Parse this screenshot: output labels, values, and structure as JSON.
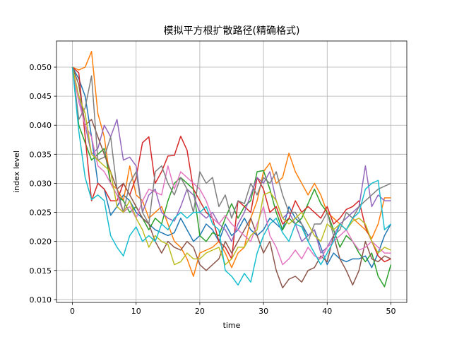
{
  "chart_data": {
    "type": "line",
    "title": "模拟平方根扩散路径(精确格式)",
    "xlabel": "time",
    "ylabel": "index level",
    "xlim": [
      -2.5,
      52.5
    ],
    "ylim": [
      0.0095,
      0.0545
    ],
    "xticks": [
      0,
      10,
      20,
      30,
      40,
      50
    ],
    "yticks": [
      0.01,
      0.015,
      0.02,
      0.025,
      0.03,
      0.035,
      0.04,
      0.045,
      0.05
    ],
    "xtick_labels": [
      "0",
      "10",
      "20",
      "30",
      "40",
      "50"
    ],
    "ytick_labels": [
      "0.010",
      "0.015",
      "0.020",
      "0.025",
      "0.030",
      "0.035",
      "0.040",
      "0.045",
      "0.050"
    ],
    "grid": true,
    "x": [
      0,
      1,
      2,
      3,
      4,
      5,
      6,
      7,
      8,
      9,
      10,
      11,
      12,
      13,
      14,
      15,
      16,
      17,
      18,
      19,
      20,
      21,
      22,
      23,
      24,
      25,
      26,
      27,
      28,
      29,
      30,
      31,
      32,
      33,
      34,
      35,
      36,
      37,
      38,
      39,
      40,
      41,
      42,
      43,
      44,
      45,
      46,
      47,
      48,
      49,
      50
    ],
    "series": [
      {
        "color": "#1f77b4",
        "values": [
          0.05,
          0.048,
          0.045,
          0.038,
          0.03,
          0.029,
          0.0245,
          0.026,
          0.028,
          0.027,
          0.025,
          0.024,
          0.023,
          0.022,
          0.0215,
          0.021,
          0.0215,
          0.024,
          0.022,
          0.02,
          0.021,
          0.023,
          0.022,
          0.02,
          0.023,
          0.021,
          0.022,
          0.024,
          0.022,
          0.021,
          0.022,
          0.024,
          0.023,
          0.022,
          0.026,
          0.024,
          0.023,
          0.021,
          0.022,
          0.019,
          0.016,
          0.018,
          0.017,
          0.0165,
          0.017,
          0.017,
          0.0175,
          0.0155,
          0.018,
          0.021,
          0.023
        ]
      },
      {
        "color": "#ff7f0e",
        "values": [
          0.05,
          0.0495,
          0.05,
          0.0527,
          0.042,
          0.038,
          0.03,
          0.029,
          0.027,
          0.033,
          0.028,
          0.027,
          0.024,
          0.025,
          0.026,
          0.023,
          0.02,
          0.019,
          0.017,
          0.014,
          0.018,
          0.0185,
          0.019,
          0.02,
          0.018,
          0.0155,
          0.018,
          0.019,
          0.024,
          0.027,
          0.032,
          0.0335,
          0.03,
          0.031,
          0.0352,
          0.032,
          0.03,
          0.028,
          0.03,
          0.028,
          0.025,
          0.024,
          0.023,
          0.022,
          0.024,
          0.023,
          0.022,
          0.0205,
          0.023,
          0.0275,
          0.0275
        ]
      },
      {
        "color": "#2ca02c",
        "values": [
          0.05,
          0.04,
          0.037,
          0.034,
          0.035,
          0.036,
          0.03,
          0.028,
          0.027,
          0.025,
          0.026,
          0.024,
          0.022,
          0.024,
          0.023,
          0.027,
          0.03,
          0.031,
          0.03,
          0.029,
          0.021,
          0.02,
          0.0215,
          0.021,
          0.024,
          0.0265,
          0.024,
          0.026,
          0.027,
          0.032,
          0.0322,
          0.029,
          0.025,
          0.022,
          0.024,
          0.023,
          0.024,
          0.0265,
          0.029,
          0.0265,
          0.025,
          0.022,
          0.019,
          0.021,
          0.02,
          0.018,
          0.0165,
          0.018,
          0.014,
          0.0122,
          0.016
        ]
      },
      {
        "color": "#d62728",
        "values": [
          0.05,
          0.049,
          0.038,
          0.027,
          0.03,
          0.029,
          0.027,
          0.027,
          0.03,
          0.028,
          0.031,
          0.037,
          0.038,
          0.03,
          0.032,
          0.0347,
          0.0348,
          0.0381,
          0.0357,
          0.029,
          0.027,
          0.025,
          0.024,
          0.02,
          0.019,
          0.017,
          0.027,
          0.026,
          0.025,
          0.031,
          0.029,
          0.025,
          0.026,
          0.023,
          0.024,
          0.027,
          0.025,
          0.026,
          0.025,
          0.024,
          0.026,
          0.023,
          0.024,
          0.0255,
          0.026,
          0.027,
          0.0225,
          0.02,
          0.0175,
          0.0165,
          0.017
        ]
      },
      {
        "color": "#9467bd",
        "values": [
          0.05,
          0.045,
          0.04,
          0.035,
          0.036,
          0.04,
          0.038,
          0.041,
          0.034,
          0.0345,
          0.033,
          0.025,
          0.028,
          0.029,
          0.025,
          0.024,
          0.0235,
          0.026,
          0.029,
          0.028,
          0.025,
          0.024,
          0.025,
          0.023,
          0.022,
          0.02,
          0.023,
          0.025,
          0.028,
          0.031,
          0.03,
          0.032,
          0.027,
          0.024,
          0.025,
          0.023,
          0.02,
          0.021,
          0.022,
          0.018,
          0.019,
          0.021,
          0.023,
          0.024,
          0.025,
          0.026,
          0.033,
          0.026,
          0.028,
          0.027,
          0.027
        ]
      },
      {
        "color": "#8c564b",
        "values": [
          0.05,
          0.047,
          0.04,
          0.041,
          0.038,
          0.035,
          0.032,
          0.029,
          0.03,
          0.028,
          0.026,
          0.024,
          0.023,
          0.02,
          0.018,
          0.02,
          0.019,
          0.0185,
          0.02,
          0.019,
          0.016,
          0.015,
          0.016,
          0.017,
          0.02,
          0.018,
          0.02,
          0.022,
          0.024,
          0.021,
          0.018,
          0.02,
          0.015,
          0.012,
          0.0135,
          0.014,
          0.013,
          0.015,
          0.0155,
          0.0175,
          0.0165,
          0.021,
          0.017,
          0.015,
          0.0125,
          0.015,
          0.02,
          0.017,
          0.0165,
          0.0175,
          0.017
        ]
      },
      {
        "color": "#e377c2",
        "values": [
          0.05,
          0.044,
          0.04,
          0.038,
          0.033,
          0.032,
          0.03,
          0.028,
          0.025,
          0.026,
          0.024,
          0.027,
          0.029,
          0.0285,
          0.028,
          0.033,
          0.029,
          0.032,
          0.031,
          0.03,
          0.029,
          0.027,
          0.024,
          0.023,
          0.0245,
          0.023,
          0.022,
          0.021,
          0.02,
          0.023,
          0.026,
          0.021,
          0.019,
          0.016,
          0.017,
          0.0185,
          0.017,
          0.019,
          0.0175,
          0.017,
          0.019,
          0.02,
          0.021,
          0.022,
          0.02,
          0.0185,
          0.019,
          0.02,
          0.019,
          0.018,
          0.018
        ]
      },
      {
        "color": "#7f7f7f",
        "values": [
          0.05,
          0.041,
          0.043,
          0.0485,
          0.034,
          0.0345,
          0.038,
          0.029,
          0.025,
          0.03,
          0.032,
          0.025,
          0.023,
          0.032,
          0.033,
          0.03,
          0.028,
          0.031,
          0.029,
          0.025,
          0.032,
          0.03,
          0.031,
          0.026,
          0.028,
          0.024,
          0.027,
          0.0265,
          0.03,
          0.028,
          0.031,
          0.03,
          0.032,
          0.028,
          0.025,
          0.025,
          0.023,
          0.02,
          0.023,
          0.023,
          0.025,
          0.021,
          0.022,
          0.025,
          0.024,
          0.026,
          0.027,
          0.028,
          0.029,
          0.0295,
          0.03
        ]
      },
      {
        "color": "#bcbd22",
        "values": [
          0.05,
          0.045,
          0.042,
          0.035,
          0.034,
          0.033,
          0.032,
          0.026,
          0.025,
          0.027,
          0.024,
          0.022,
          0.019,
          0.021,
          0.02,
          0.0195,
          0.016,
          0.0165,
          0.018,
          0.017,
          0.017,
          0.018,
          0.0185,
          0.019,
          0.016,
          0.017,
          0.019,
          0.019,
          0.021,
          0.022,
          0.028,
          0.0285,
          0.027,
          0.024,
          0.023,
          0.024,
          0.025,
          0.023,
          0.021,
          0.02,
          0.023,
          0.022,
          0.023,
          0.022,
          0.0235,
          0.024,
          0.023,
          0.02,
          0.018,
          0.019,
          0.0185
        ]
      },
      {
        "color": "#17becf",
        "values": [
          0.05,
          0.039,
          0.031,
          0.0272,
          0.028,
          0.027,
          0.021,
          0.019,
          0.0175,
          0.021,
          0.0225,
          0.02,
          0.021,
          0.02,
          0.023,
          0.022,
          0.024,
          0.025,
          0.024,
          0.025,
          0.025,
          0.026,
          0.023,
          0.022,
          0.015,
          0.014,
          0.0125,
          0.0145,
          0.013,
          0.018,
          0.021,
          0.023,
          0.024,
          0.0215,
          0.02,
          0.023,
          0.0225,
          0.02,
          0.018,
          0.016,
          0.018,
          0.02,
          0.023,
          0.022,
          0.024,
          0.025,
          0.029,
          0.03,
          0.0305,
          0.022,
          0.023
        ]
      }
    ]
  }
}
